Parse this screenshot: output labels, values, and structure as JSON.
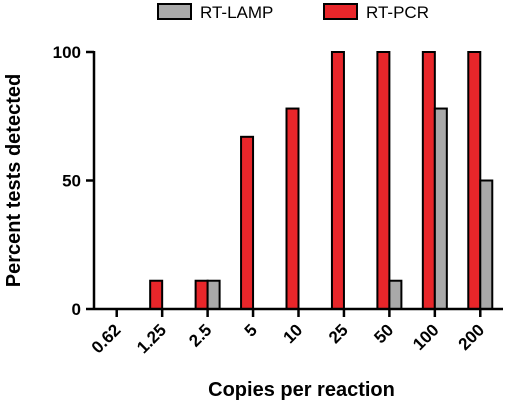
{
  "chart_data": {
    "type": "bar",
    "title": "",
    "xlabel": "Copies per reaction",
    "ylabel": "Percent tests detected",
    "categories": [
      "0.62",
      "1.25",
      "2.5",
      "5",
      "10",
      "25",
      "50",
      "100",
      "200"
    ],
    "ylim": [
      0,
      100
    ],
    "yticks": [
      0,
      50,
      100
    ],
    "grid": false,
    "legend_position": "top",
    "series": [
      {
        "name": "RT-PCR",
        "color": "#e8262a",
        "values": [
          0,
          11,
          11,
          67,
          78,
          100,
          100,
          100,
          100
        ]
      },
      {
        "name": "RT-LAMP",
        "color": "#a9a9a9",
        "values": [
          0,
          0,
          11,
          0,
          0,
          0,
          11,
          78,
          50
        ]
      }
    ],
    "legend_order": [
      "RT-LAMP",
      "RT-PCR"
    ]
  }
}
